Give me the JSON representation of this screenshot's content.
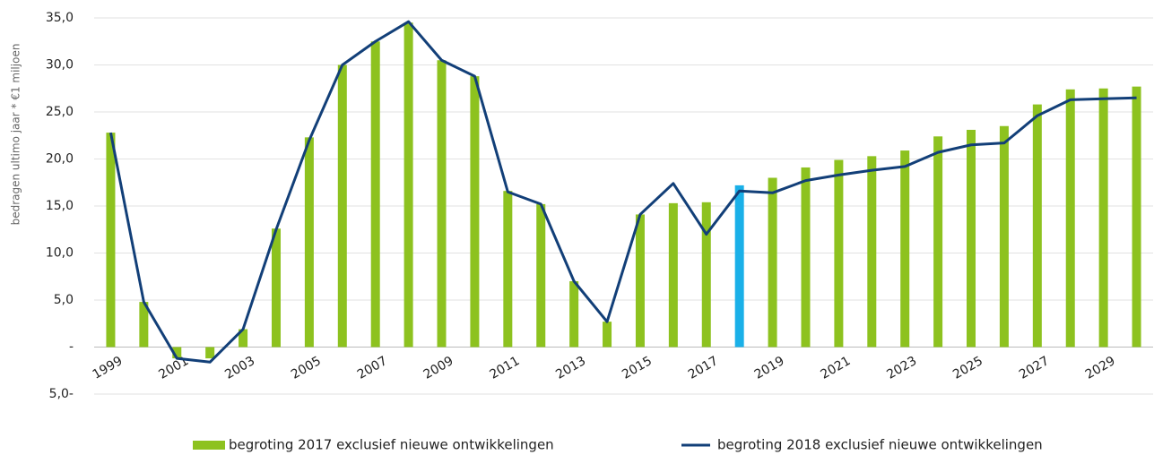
{
  "chart_data": {
    "type": "bar_line",
    "y_label": "bedragen ultimo jaar * €1 miljoen",
    "categories": [
      "1999",
      null,
      "2001",
      null,
      "2003",
      null,
      "2005",
      null,
      "2007",
      null,
      "2009",
      null,
      "2011",
      null,
      "2013",
      null,
      "2015",
      null,
      "2017",
      null,
      "2019",
      null,
      "2021",
      null,
      "2023",
      null,
      "2025",
      null,
      "2027",
      null,
      "2029",
      null
    ],
    "series": [
      {
        "name": "begroting 2017 exclusief nieuwe ontwikkelingen",
        "kind": "bar",
        "color": "#8dc21f",
        "colors": [
          "#8dc21f",
          "#8dc21f",
          "#8dc21f",
          "#8dc21f",
          "#8dc21f",
          "#8dc21f",
          "#8dc21f",
          "#8dc21f",
          "#8dc21f",
          "#8dc21f",
          "#8dc21f",
          "#8dc21f",
          "#8dc21f",
          "#8dc21f",
          "#8dc21f",
          "#8dc21f",
          "#8dc21f",
          "#8dc21f",
          "#8dc21f",
          "#1ab0e8",
          "#8dc21f",
          "#8dc21f",
          "#8dc21f",
          "#8dc21f",
          "#8dc21f",
          "#8dc21f",
          "#8dc21f",
          "#8dc21f",
          "#8dc21f",
          "#8dc21f",
          "#8dc21f",
          "#8dc21f"
        ],
        "values": [
          22.8,
          4.8,
          -1.2,
          -1.2,
          1.9,
          12.6,
          22.3,
          30.0,
          32.5,
          34.5,
          30.5,
          28.8,
          16.6,
          15.2,
          7.0,
          2.7,
          14.1,
          15.3,
          15.4,
          17.2,
          18.0,
          19.1,
          19.9,
          20.3,
          20.9,
          22.4,
          23.1,
          23.5,
          25.8,
          27.4,
          27.5,
          27.7
        ]
      },
      {
        "name": "begroting 2018 exclusief nieuwe ontwikkelingen",
        "kind": "line",
        "color": "#123f78",
        "values": [
          22.8,
          4.8,
          -1.2,
          -1.6,
          1.9,
          12.5,
          22.0,
          30.0,
          32.5,
          34.6,
          30.5,
          28.8,
          16.5,
          15.2,
          7.0,
          2.7,
          14.1,
          17.4,
          12.0,
          16.6,
          16.4,
          17.7,
          18.3,
          18.8,
          19.2,
          20.7,
          21.5,
          21.7,
          24.6,
          26.3,
          26.4,
          26.5
        ]
      }
    ],
    "ylim": [
      -5,
      35
    ],
    "yticks": [
      {
        "value": -5,
        "label": "5,0-"
      },
      {
        "value": 0,
        "label": "-"
      },
      {
        "value": 5,
        "label": "5,0"
      },
      {
        "value": 10,
        "label": "10,0"
      },
      {
        "value": 15,
        "label": "15,0"
      },
      {
        "value": 20,
        "label": "20,0"
      },
      {
        "value": 25,
        "label": "25,0"
      },
      {
        "value": 30,
        "label": "30,0"
      },
      {
        "value": 35,
        "label": "35,0"
      }
    ],
    "grid": true,
    "legend": "bottom"
  }
}
